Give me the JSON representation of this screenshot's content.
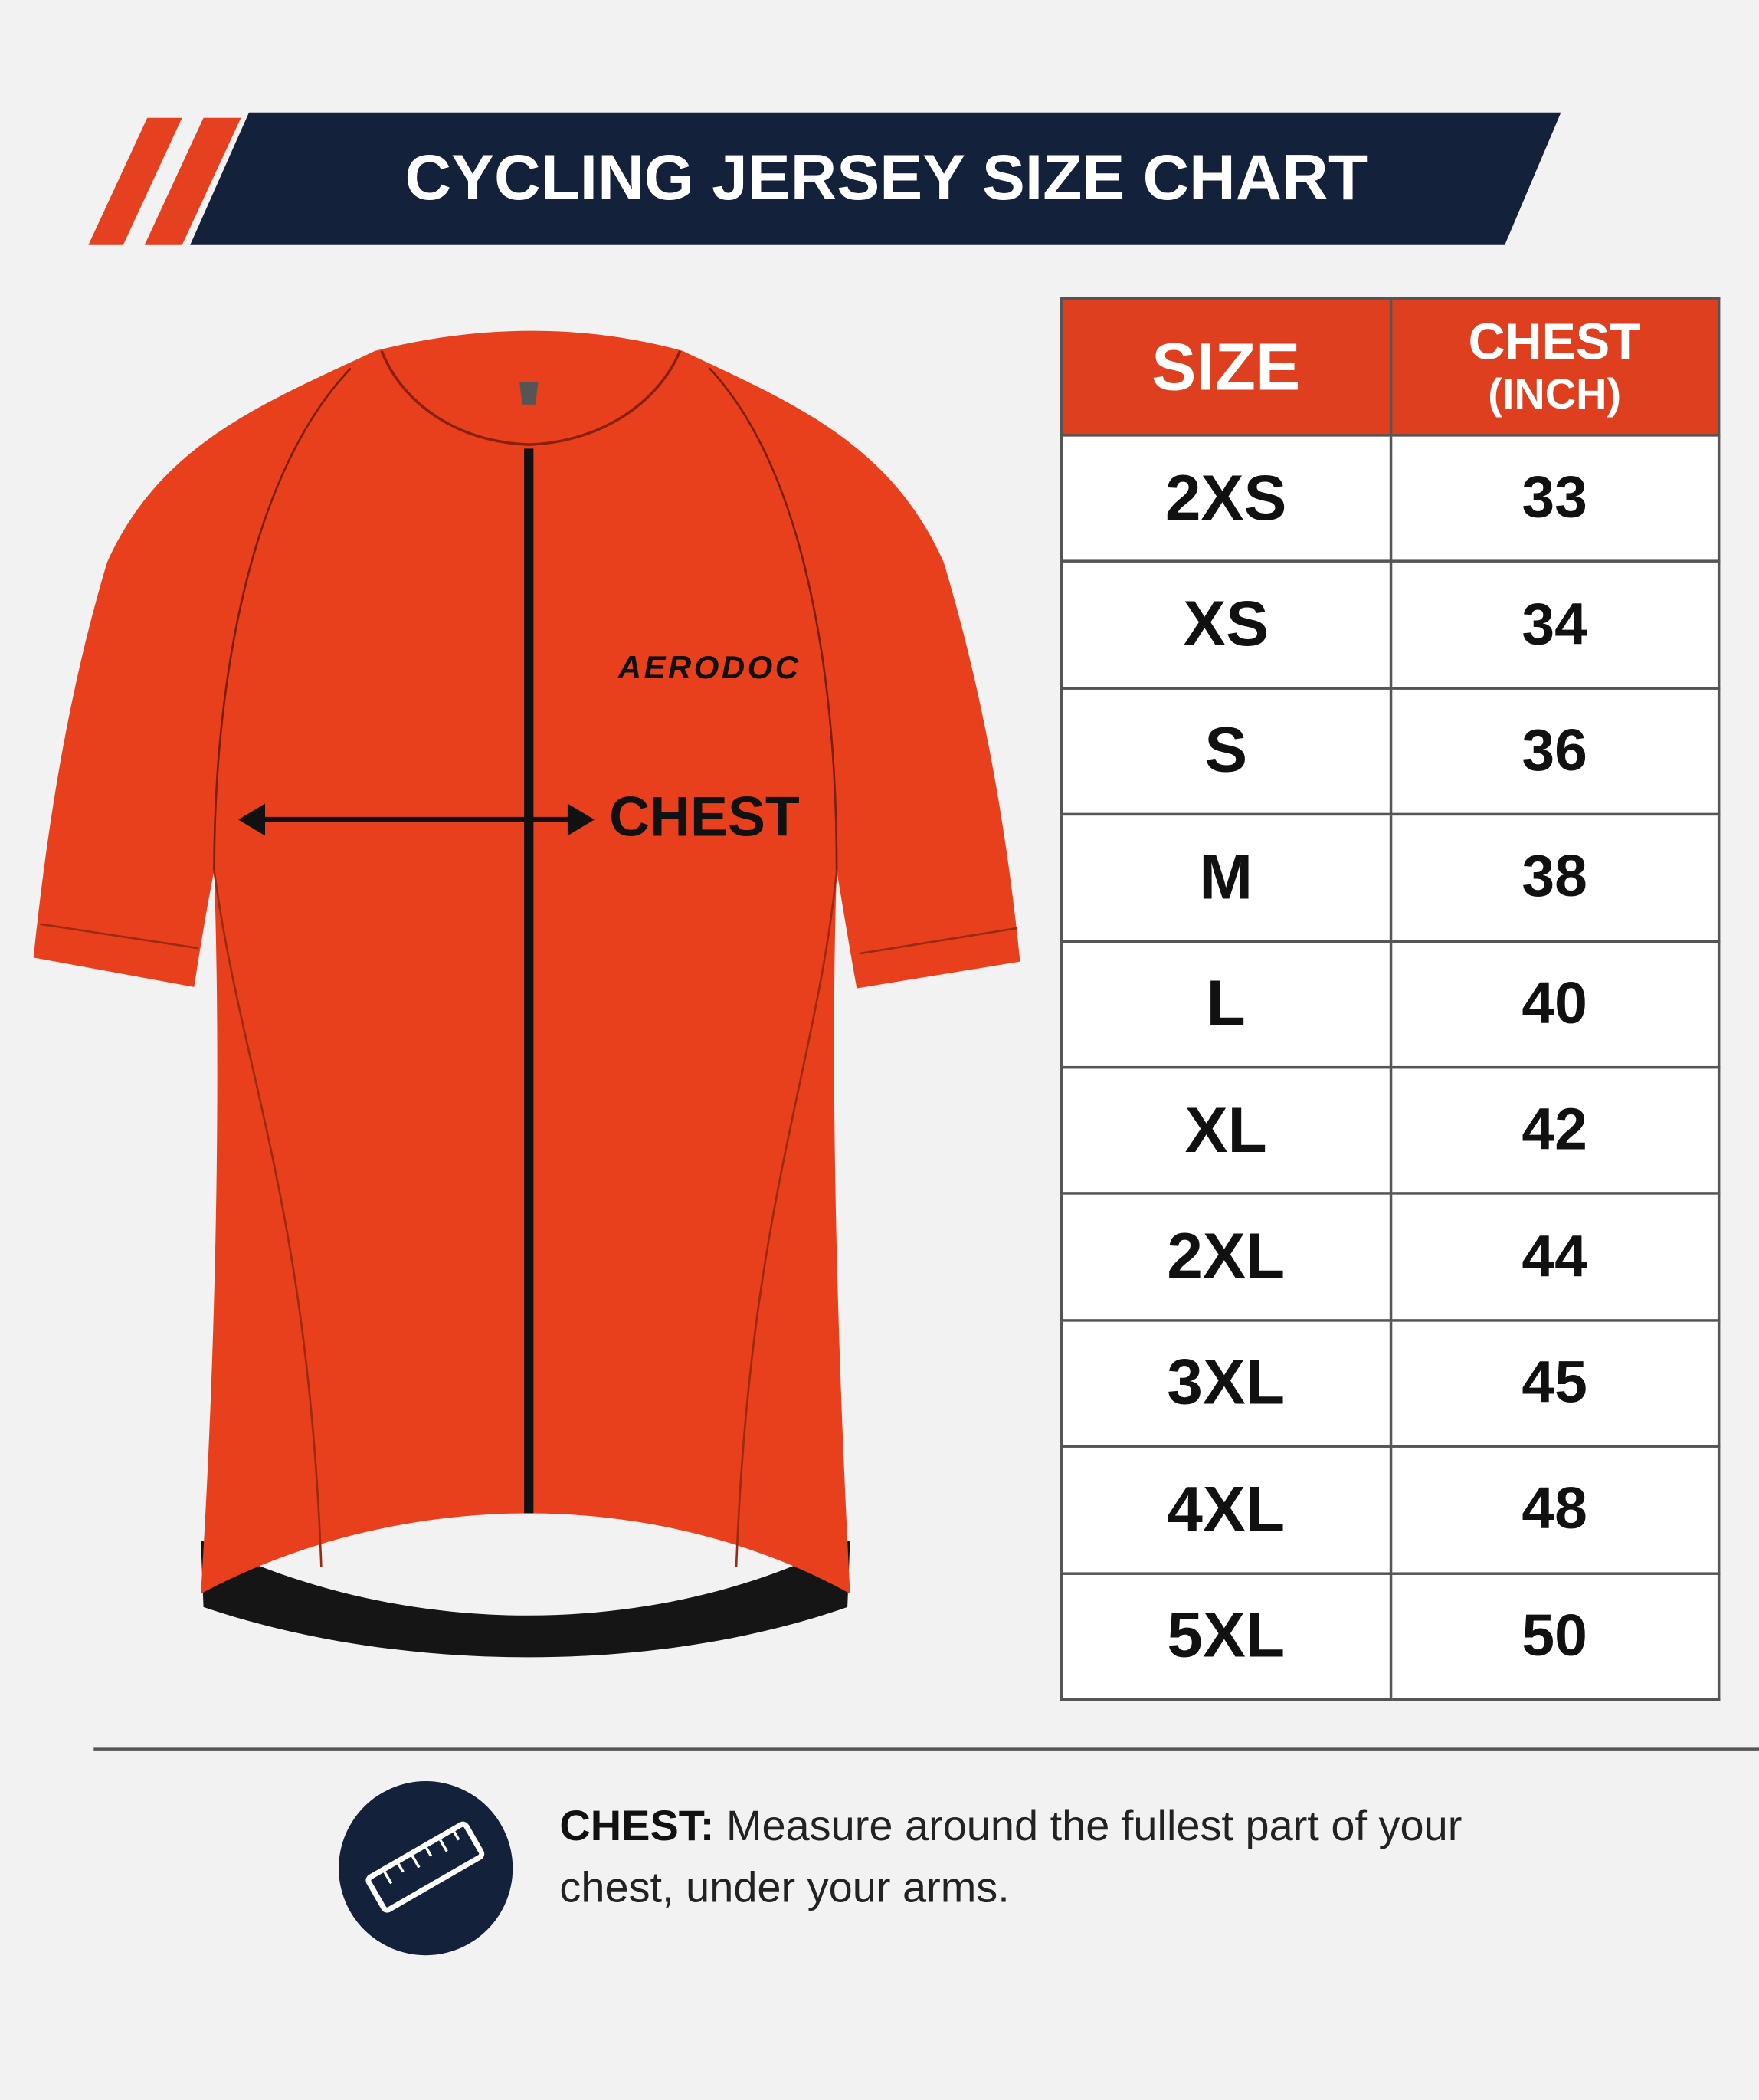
{
  "header": {
    "title": "CYCLING JERSEY SIZE CHART"
  },
  "jersey": {
    "brand": "AERODOC",
    "measure_label": "CHEST"
  },
  "table": {
    "header_cells": [
      [
        "SIZE"
      ],
      [
        "CHEST",
        "(INCH)"
      ]
    ],
    "rows": [
      [
        "2XS",
        33
      ],
      [
        "XS",
        34
      ],
      [
        "S",
        36
      ],
      [
        "M",
        38
      ],
      [
        "L",
        40
      ],
      [
        "XL",
        42
      ],
      [
        "2XL",
        44
      ],
      [
        "3XL",
        45
      ],
      [
        "4XL",
        48
      ],
      [
        "5XL",
        50
      ]
    ]
  },
  "note": {
    "term": "CHEST:",
    "text": "Measure around the fullest part of your chest, under your arms."
  }
}
